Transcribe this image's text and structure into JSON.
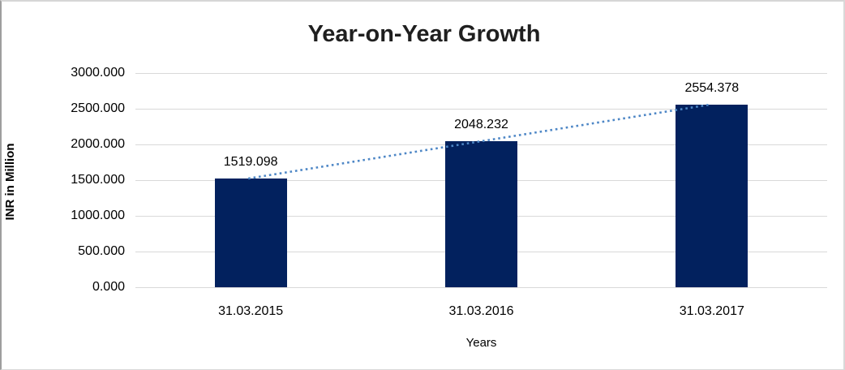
{
  "chart_data": {
    "type": "bar",
    "title": "Year-on-Year Growth",
    "xlabel": "Years",
    "ylabel": "INR in Million",
    "categories": [
      "31.03.2015",
      "31.03.2016",
      "31.03.2017"
    ],
    "values": [
      1519.098,
      2048.232,
      2554.378
    ],
    "data_labels": [
      "1519.098",
      "2048.232",
      "2554.378"
    ],
    "ylim": [
      0,
      3000
    ],
    "yticks": [
      0,
      500,
      1000,
      1500,
      2000,
      2500,
      3000
    ],
    "ytick_labels": [
      "0.000",
      "500.000",
      "1000.000",
      "1500.000",
      "2000.000",
      "2500.000",
      "3000.000"
    ],
    "grid": true,
    "legend": false,
    "bar_color": "#02215e",
    "gridline_color": "#d9d9d9",
    "trendline": {
      "type": "linear",
      "style": "dotted",
      "color": "#4e87c6"
    }
  }
}
